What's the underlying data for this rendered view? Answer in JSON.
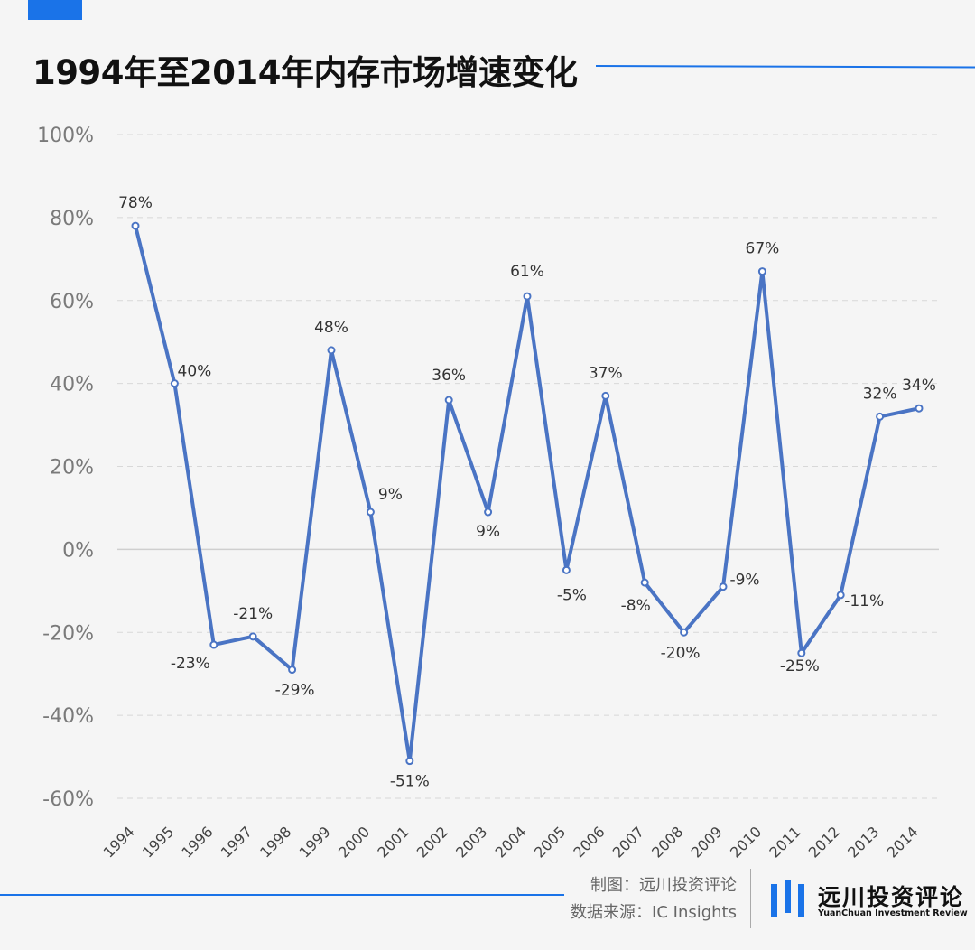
{
  "title": "1994年至2014年内存市场增速变化",
  "colors": {
    "accent": "#1a73e8",
    "series": "#4a74c4",
    "grid": "#d8d8d8"
  },
  "footer": {
    "credit_chart": "制图：远川投资评论",
    "credit_source": "数据来源：IC Insights",
    "logo_name": "远川投资评论",
    "logo_sub": "YuanChuan Investment Review",
    "logo_icon": "bar-logo-icon"
  },
  "chart_data": {
    "type": "line",
    "title": "1994年至2014年内存市场增速变化",
    "xlabel": "",
    "ylabel": "",
    "categories": [
      "1994",
      "1995",
      "1996",
      "1997",
      "1998",
      "1999",
      "2000",
      "2001",
      "2002",
      "2003",
      "2004",
      "2005",
      "2006",
      "2007",
      "2008",
      "2009",
      "2010",
      "2011",
      "2012",
      "2013",
      "2014"
    ],
    "series": [
      {
        "values": [
          78,
          40,
          -23,
          -21,
          -29,
          48,
          9,
          -51,
          36,
          9,
          61,
          -5,
          37,
          -8,
          -20,
          -9,
          67,
          -25,
          -11,
          32,
          34
        ]
      }
    ],
    "data_labels": [
      "78%",
      "40%",
      "-23%",
      "-21%",
      "-29%",
      "48%",
      "9%",
      "-51%",
      "36%",
      "9%",
      "61%",
      "-5%",
      "37%",
      "-8%",
      "-20%",
      "-9%",
      "67%",
      "-25%",
      "-11%",
      "32%",
      "34%"
    ],
    "yticks": [
      100,
      80,
      60,
      40,
      20,
      0,
      -20,
      -40,
      -60
    ],
    "ytick_labels": [
      "100%",
      "80%",
      "60%",
      "40%",
      "20%",
      "0%",
      "-20%",
      "-40%",
      "-60%"
    ],
    "ylim": [
      -60,
      100
    ],
    "grid": true,
    "legend": "none"
  }
}
